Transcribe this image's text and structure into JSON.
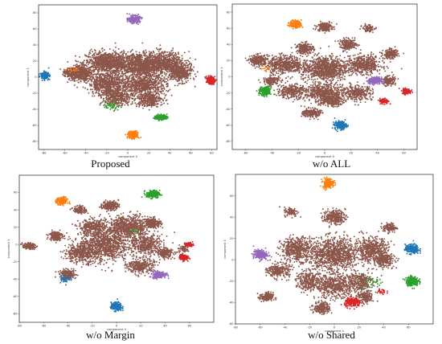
{
  "colors": {
    "brown": "#8c564b",
    "blue": "#1f77b4",
    "orange": "#ff7f0e",
    "green": "#2ca02c",
    "red": "#d62728",
    "purple": "#9467bd"
  },
  "chart_data": [
    {
      "type": "scatter",
      "caption": "Proposed",
      "xlabel": "component 0",
      "ylabel": "component 1",
      "xlim": [
        -85,
        85
      ],
      "ylim": [
        -90,
        90
      ],
      "xticks": [
        -80,
        -60,
        -40,
        -20,
        0,
        20,
        40,
        60,
        80
      ],
      "yticks": [
        -80,
        -60,
        -40,
        -20,
        0,
        20,
        40,
        60,
        80
      ],
      "series": [
        {
          "color": "brown",
          "points": [
            [
              -45,
              5,
              10,
              8,
              600
            ],
            [
              -20,
              18,
              18,
              12,
              900
            ],
            [
              10,
              15,
              20,
              14,
              900
            ],
            [
              35,
              18,
              18,
              12,
              700
            ],
            [
              50,
              5,
              10,
              10,
              400
            ],
            [
              -20,
              -8,
              16,
              12,
              600
            ],
            [
              15,
              -10,
              20,
              12,
              700
            ],
            [
              -10,
              -25,
              14,
              10,
              400
            ],
            [
              20,
              -28,
              12,
              8,
              300
            ],
            [
              -55,
              5,
              6,
              5,
              120
            ]
          ]
        },
        {
          "color": "purple",
          "points": [
            [
              6,
              72,
              5,
              4,
              220
            ]
          ]
        },
        {
          "color": "blue",
          "points": [
            [
              -79,
              2,
              3.5,
              4,
              180
            ]
          ]
        },
        {
          "color": "red",
          "points": [
            [
              79,
              -4,
              3.5,
              4,
              180
            ]
          ]
        },
        {
          "color": "green",
          "points": [
            [
              32,
              -50,
              5,
              3,
              200
            ],
            [
              -15,
              -35,
              8,
              6,
              40
            ]
          ]
        },
        {
          "color": "orange",
          "points": [
            [
              5,
              -72,
              4.5,
              4,
              220
            ],
            [
              -52,
              10,
              6,
              4,
              15
            ]
          ]
        }
      ]
    },
    {
      "type": "scatter",
      "caption": "w/o ALL",
      "xlabel": "component 0",
      "ylabel": "component 1",
      "xlim": [
        -70,
        70
      ],
      "ylim": [
        -90,
        90
      ],
      "xticks": [
        -60,
        -40,
        -20,
        0,
        20,
        40,
        60
      ],
      "yticks": [
        -80,
        -60,
        -40,
        -20,
        0,
        20,
        40,
        60,
        80
      ],
      "series": [
        {
          "color": "brown",
          "points": [
            [
              0,
              10,
              16,
              14,
              900
            ],
            [
              -30,
              15,
              12,
              10,
              500
            ],
            [
              30,
              15,
              12,
              10,
              500
            ],
            [
              0,
              -20,
              14,
              10,
              500
            ],
            [
              -25,
              -18,
              10,
              8,
              300
            ],
            [
              25,
              -20,
              10,
              8,
              300
            ],
            [
              -50,
              20,
              6,
              6,
              250
            ],
            [
              50,
              28,
              5,
              5,
              200
            ],
            [
              -15,
              35,
              6,
              6,
              200
            ],
            [
              18,
              40,
              6,
              6,
              200
            ],
            [
              0,
              62,
              5,
              5,
              200
            ],
            [
              -10,
              -45,
              6,
              5,
              200
            ],
            [
              48,
              -5,
              5,
              5,
              150
            ],
            [
              -40,
              -5,
              6,
              5,
              150
            ],
            [
              33,
              60,
              4,
              4,
              80
            ],
            [
              5,
              -30,
              8,
              6,
              200
            ]
          ]
        },
        {
          "color": "orange",
          "points": [
            [
              -22,
              65,
              4,
              4,
              200
            ],
            [
              -45,
              10,
              4,
              4,
              12
            ]
          ]
        },
        {
          "color": "green",
          "points": [
            [
              -45,
              -18,
              4,
              5,
              200
            ]
          ]
        },
        {
          "color": "purple",
          "points": [
            [
              38,
              -5,
              4.5,
              4,
              220
            ]
          ]
        },
        {
          "color": "red",
          "points": [
            [
              45,
              -30,
              3,
              3,
              120
            ],
            [
              62,
              -18,
              3,
              3,
              120
            ]
          ]
        },
        {
          "color": "blue",
          "points": [
            [
              12,
              -60,
              4,
              4.5,
              220
            ]
          ]
        }
      ]
    },
    {
      "type": "scatter",
      "caption": "w/o Margin",
      "xlabel": "component 0",
      "ylabel": "component 1",
      "xlim": [
        -80,
        80
      ],
      "ylim": [
        -90,
        80
      ],
      "xticks": [
        -80,
        -60,
        -40,
        -20,
        0,
        20,
        40,
        60
      ],
      "yticks": [
        -80,
        -60,
        -40,
        -20,
        0,
        20,
        40,
        60
      ],
      "series": [
        {
          "color": "brown",
          "points": [
            [
              -10,
              0,
              18,
              18,
              1000
            ],
            [
              10,
              20,
              16,
              12,
              700
            ],
            [
              -30,
              -10,
              12,
              10,
              400
            ],
            [
              25,
              0,
              12,
              10,
              400
            ],
            [
              -20,
              20,
              10,
              8,
              300
            ],
            [
              30,
              25,
              6,
              5,
              200
            ],
            [
              -40,
              -35,
              6,
              5,
              200
            ],
            [
              -50,
              10,
              5,
              5,
              200
            ],
            [
              20,
              -25,
              10,
              8,
              300
            ],
            [
              40,
              -10,
              6,
              5,
              200
            ],
            [
              -72,
              -2,
              5,
              3,
              150
            ],
            [
              -5,
              45,
              6,
              5,
              200
            ],
            [
              -30,
              40,
              5,
              4,
              120
            ],
            [
              55,
              -5,
              4,
              4,
              60
            ]
          ]
        },
        {
          "color": "orange",
          "points": [
            [
              -45,
              50,
              4,
              4,
              200
            ]
          ]
        },
        {
          "color": "green",
          "points": [
            [
              30,
              58,
              5,
              4,
              220
            ],
            [
              15,
              15,
              4,
              4,
              10
            ]
          ]
        },
        {
          "color": "purple",
          "points": [
            [
              35,
              -35,
              5,
              3.5,
              220
            ]
          ]
        },
        {
          "color": "red",
          "points": [
            [
              60,
              0,
              3,
              2,
              80
            ],
            [
              55,
              -15,
              3,
              3,
              150
            ]
          ]
        },
        {
          "color": "blue",
          "points": [
            [
              0,
              -72,
              4,
              4.5,
              220
            ],
            [
              -42,
              -40,
              5,
              4,
              40
            ]
          ]
        }
      ]
    },
    {
      "type": "scatter",
      "caption": "w/o Shared",
      "xlabel": "component 0",
      "ylabel": "component 1",
      "xlim": [
        -80,
        80
      ],
      "ylim": [
        -60,
        80
      ],
      "xticks": [
        -80,
        -60,
        -40,
        -20,
        0,
        20,
        40,
        60
      ],
      "yticks": [
        -60,
        -40,
        -20,
        0,
        20,
        40,
        60
      ],
      "series": [
        {
          "color": "brown",
          "points": [
            [
              0,
              5,
              18,
              14,
              1000
            ],
            [
              -30,
              10,
              12,
              10,
              500
            ],
            [
              30,
              10,
              12,
              10,
              500
            ],
            [
              0,
              -25,
              14,
              10,
              500
            ],
            [
              -20,
              -20,
              10,
              8,
              300
            ],
            [
              20,
              -20,
              10,
              8,
              300
            ],
            [
              -45,
              -10,
              8,
              6,
              250
            ],
            [
              40,
              0,
              8,
              6,
              250
            ],
            [
              0,
              40,
              8,
              6,
              250
            ],
            [
              -10,
              -45,
              6,
              5,
              200
            ],
            [
              25,
              -35,
              6,
              5,
              150
            ],
            [
              -55,
              -35,
              5,
              4,
              150
            ],
            [
              45,
              30,
              5,
              4,
              120
            ],
            [
              -35,
              45,
              5,
              4,
              100
            ]
          ]
        },
        {
          "color": "orange",
          "points": [
            [
              -5,
              72,
              4,
              4,
              200
            ]
          ]
        },
        {
          "color": "purple",
          "points": [
            [
              -60,
              5,
              5,
              4,
              220
            ]
          ]
        },
        {
          "color": "blue",
          "points": [
            [
              63,
              10,
              5,
              4,
              220
            ]
          ]
        },
        {
          "color": "green",
          "points": [
            [
              63,
              -20,
              4.5,
              4,
              220
            ],
            [
              30,
              -20,
              10,
              6,
              30
            ]
          ]
        },
        {
          "color": "red",
          "points": [
            [
              15,
              -40,
              6,
              4,
              200
            ],
            [
              38,
              -30,
              4,
              3,
              30
            ]
          ]
        }
      ]
    }
  ]
}
